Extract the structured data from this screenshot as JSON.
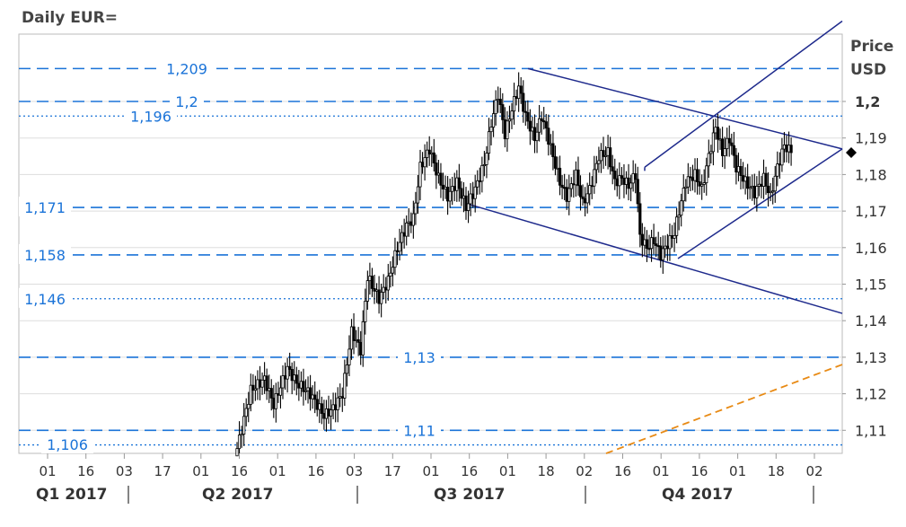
{
  "chart_data": {
    "type": "candlestick",
    "title": "Daily EUR=",
    "ylabel": [
      "Price",
      "USD"
    ],
    "ylim": [
      1.104,
      1.219
    ],
    "y_ticks": [
      {
        "v": 1.11,
        "label": "1,11",
        "bold": false
      },
      {
        "v": 1.12,
        "label": "1,12",
        "bold": false
      },
      {
        "v": 1.13,
        "label": "1,13",
        "bold": false
      },
      {
        "v": 1.14,
        "label": "1,14",
        "bold": false
      },
      {
        "v": 1.15,
        "label": "1,15",
        "bold": false
      },
      {
        "v": 1.16,
        "label": "1,16",
        "bold": false
      },
      {
        "v": 1.17,
        "label": "1,17",
        "bold": false
      },
      {
        "v": 1.18,
        "label": "1,18",
        "bold": false
      },
      {
        "v": 1.19,
        "label": "1,19",
        "bold": false
      },
      {
        "v": 1.2,
        "label": "1,2",
        "bold": true
      }
    ],
    "x_ticks": [
      "01",
      "16",
      "03",
      "17",
      "01",
      "16",
      "01",
      "16",
      "03",
      "17",
      "01",
      "16",
      "01",
      "18",
      "02",
      "16",
      "01",
      "16",
      "01",
      "18",
      "02"
    ],
    "quarters": [
      "Q1 2017",
      "Q2 2017",
      "Q3 2017",
      "Q4 2017"
    ],
    "levels": [
      {
        "v": 1.209,
        "label": "1,209",
        "style": "dashed"
      },
      {
        "v": 1.2,
        "label": "1,2",
        "style": "dashed"
      },
      {
        "v": 1.196,
        "label": "1,196",
        "style": "dotted"
      },
      {
        "v": 1.171,
        "label": "1,171",
        "style": "dashed"
      },
      {
        "v": 1.158,
        "label": "1,158",
        "style": "dashed"
      },
      {
        "v": 1.146,
        "label": "1,146",
        "style": "dotted"
      },
      {
        "v": 1.13,
        "label": "1,13",
        "style": "dashed"
      },
      {
        "v": 1.11,
        "label": "1,11",
        "style": "dashed"
      },
      {
        "v": 1.106,
        "label": "1,106",
        "style": "dotted"
      }
    ],
    "last_price": 1.186,
    "series": [
      {
        "name": "EUR=",
        "anchors": [
          [
            0,
            1.105
          ],
          [
            6,
            1.121
          ],
          [
            12,
            1.124
          ],
          [
            16,
            1.117
          ],
          [
            22,
            1.127
          ],
          [
            26,
            1.123
          ],
          [
            32,
            1.12
          ],
          [
            38,
            1.114
          ],
          [
            42,
            1.116
          ],
          [
            46,
            1.12
          ],
          [
            50,
            1.137
          ],
          [
            54,
            1.132
          ],
          [
            57,
            1.152
          ],
          [
            62,
            1.146
          ],
          [
            66,
            1.151
          ],
          [
            70,
            1.16
          ],
          [
            74,
            1.166
          ],
          [
            77,
            1.168
          ],
          [
            80,
            1.182
          ],
          [
            84,
            1.187
          ],
          [
            88,
            1.179
          ],
          [
            92,
            1.174
          ],
          [
            96,
            1.178
          ],
          [
            100,
            1.171
          ],
          [
            104,
            1.176
          ],
          [
            108,
            1.183
          ],
          [
            111,
            1.194
          ],
          [
            114,
            1.202
          ],
          [
            117,
            1.191
          ],
          [
            120,
            1.198
          ],
          [
            123,
            1.204
          ],
          [
            126,
            1.196
          ],
          [
            130,
            1.19
          ],
          [
            133,
            1.196
          ],
          [
            135,
            1.192
          ],
          [
            138,
            1.185
          ],
          [
            141,
            1.178
          ],
          [
            144,
            1.174
          ],
          [
            148,
            1.18
          ],
          [
            151,
            1.172
          ],
          [
            154,
            1.176
          ],
          [
            158,
            1.185
          ],
          [
            162,
            1.186
          ],
          [
            165,
            1.178
          ],
          [
            168,
            1.179
          ],
          [
            171,
            1.177
          ],
          [
            174,
            1.18
          ],
          [
            176,
            1.163
          ],
          [
            179,
            1.16
          ],
          [
            182,
            1.162
          ],
          [
            185,
            1.158
          ],
          [
            188,
            1.161
          ],
          [
            191,
            1.164
          ],
          [
            193,
            1.17
          ],
          [
            196,
            1.178
          ],
          [
            200,
            1.18
          ],
          [
            203,
            1.176
          ],
          [
            206,
            1.185
          ],
          [
            209,
            1.193
          ],
          [
            212,
            1.186
          ],
          [
            215,
            1.19
          ],
          [
            218,
            1.182
          ],
          [
            222,
            1.178
          ],
          [
            226,
            1.175
          ],
          [
            230,
            1.179
          ],
          [
            233,
            1.174
          ],
          [
            236,
            1.182
          ],
          [
            239,
            1.188
          ],
          [
            242,
            1.186
          ]
        ]
      }
    ]
  }
}
